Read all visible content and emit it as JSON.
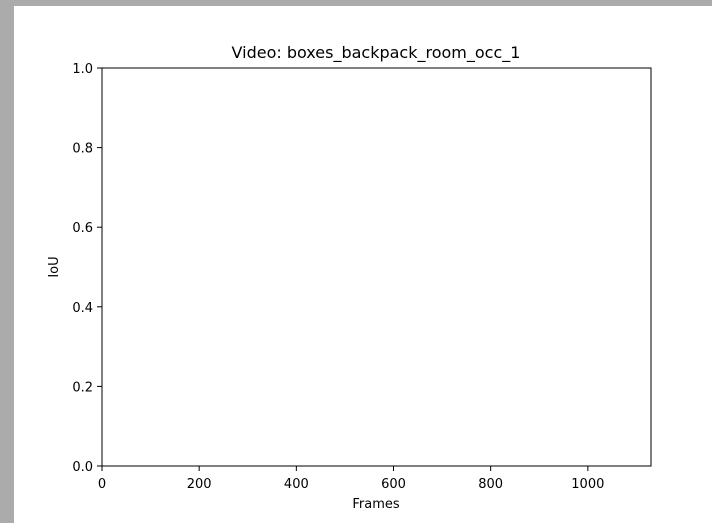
{
  "chart_data": {
    "type": "line",
    "title": "Video: boxes_backpack_room_occ_1",
    "xlabel": "Frames",
    "ylabel": "IoU",
    "xlim": [
      0,
      1130
    ],
    "ylim": [
      0.0,
      1.0
    ],
    "xticks": [
      0,
      200,
      400,
      600,
      800,
      1000
    ],
    "xtick_labels": [
      "0",
      "200",
      "400",
      "600",
      "800",
      "1000"
    ],
    "yticks": [
      0.0,
      0.2,
      0.4,
      0.6,
      0.8,
      1.0
    ],
    "ytick_labels": [
      "0.0",
      "0.2",
      "0.4",
      "0.6",
      "0.8",
      "1.0"
    ],
    "grid": false,
    "series": []
  }
}
